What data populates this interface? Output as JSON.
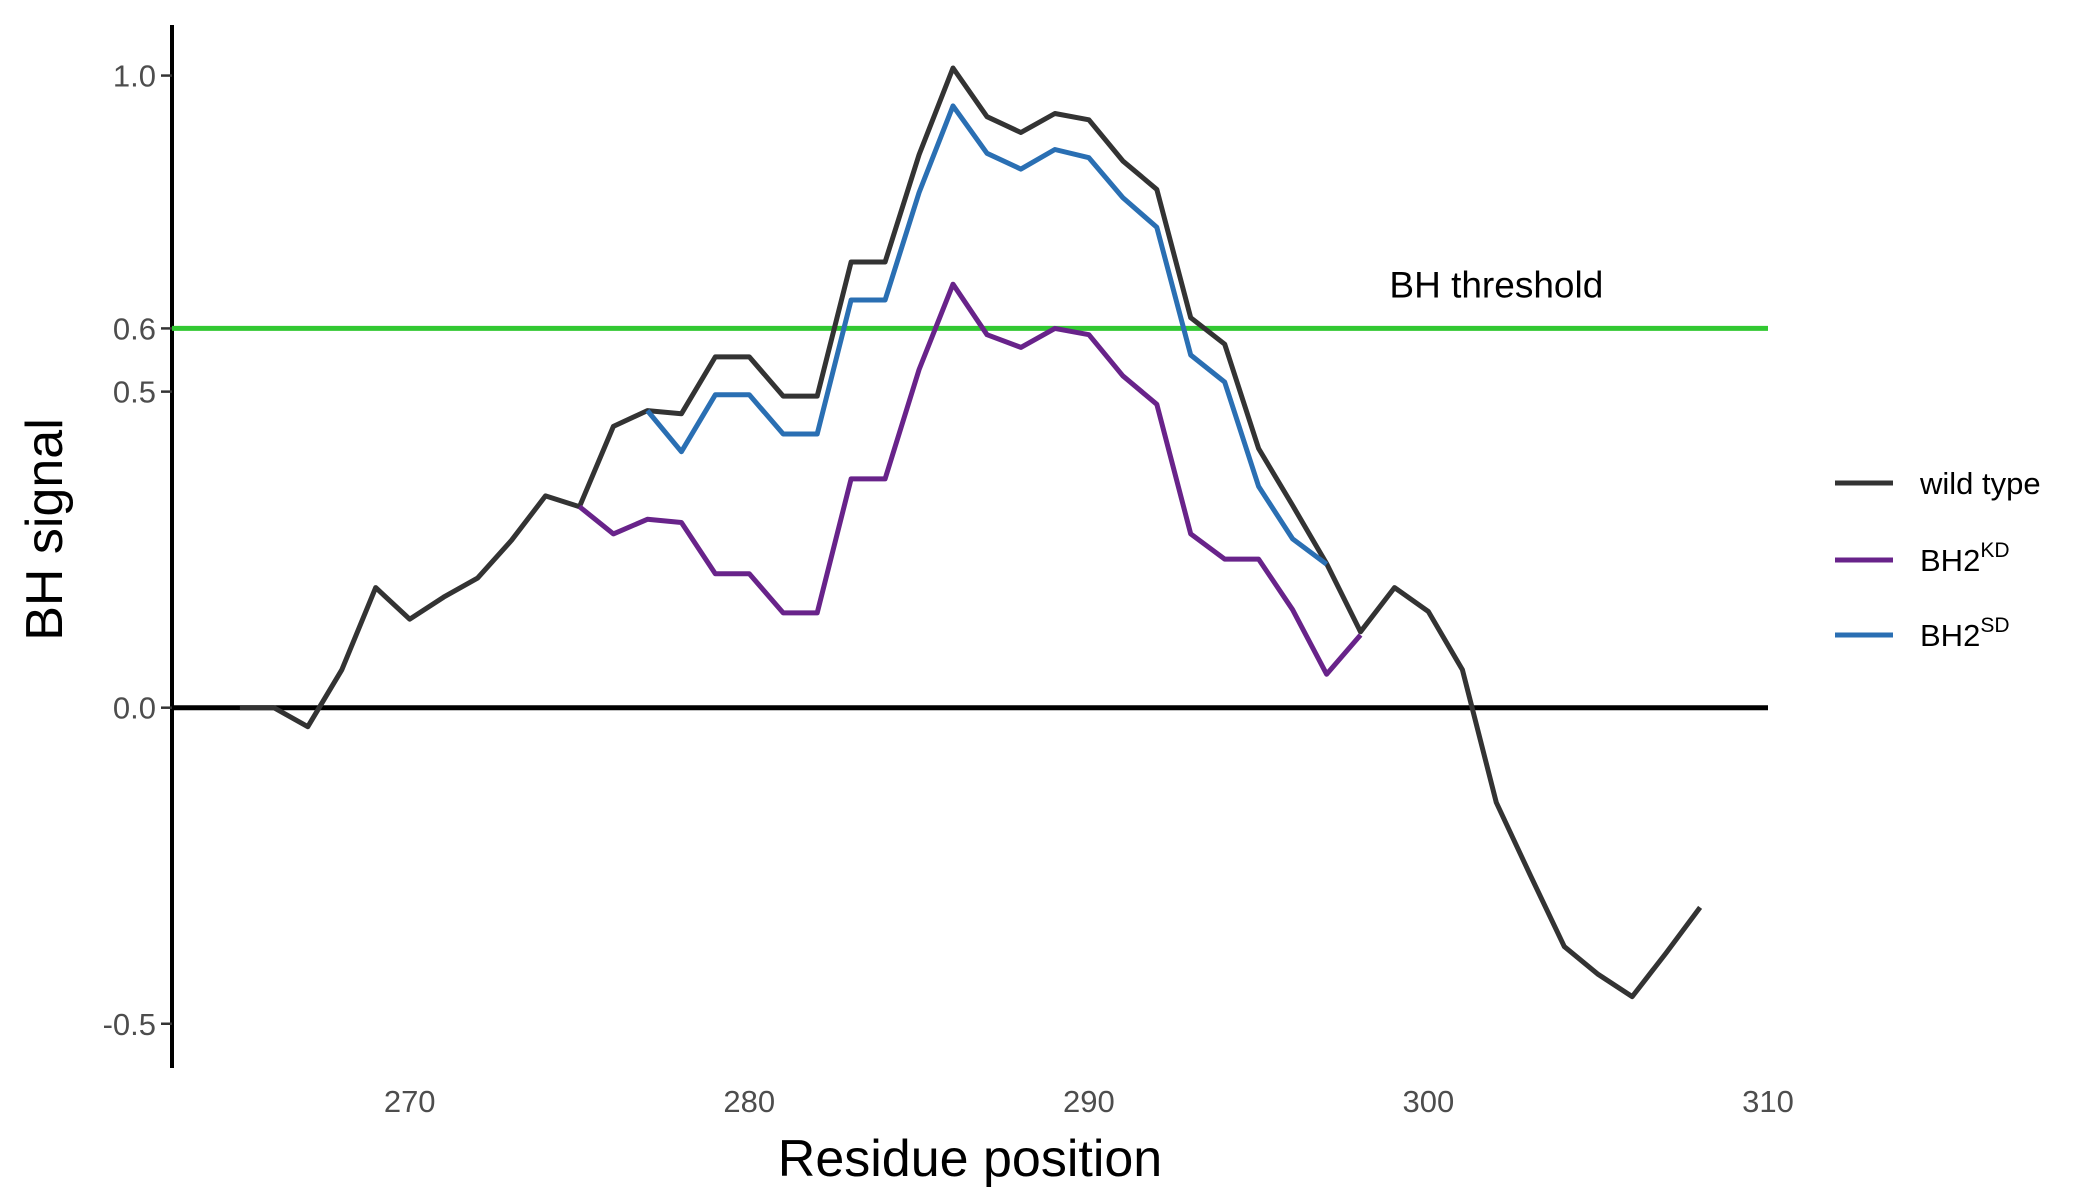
{
  "chart_data": {
    "type": "line",
    "xlabel": "Residue position",
    "ylabel": "BH signal",
    "xlim": [
      263,
      310
    ],
    "ylim": [
      -0.57,
      1.08
    ],
    "x_ticks": [
      270,
      280,
      290,
      300,
      310
    ],
    "x_tick_labels": [
      "270",
      "280",
      "290",
      "300",
      "310"
    ],
    "y_ticks": [
      -0.5,
      0.0,
      0.5,
      0.6,
      1.0
    ],
    "y_tick_labels": [
      "-0.5",
      "0.0",
      "0.5",
      "0.6",
      "1.0"
    ],
    "grid": false,
    "legend_position": "right",
    "zero_line": 0.0,
    "threshold": {
      "value": 0.6,
      "label": "BH threshold",
      "label_x": 302,
      "color": "#32c832"
    },
    "series": [
      {
        "name": "wild type",
        "label_main": "wild type",
        "label_sup": "",
        "color": "#333333",
        "x": [
          265,
          266,
          267,
          268,
          269,
          270,
          271,
          272,
          273,
          274,
          275,
          276,
          277,
          278,
          279,
          280,
          281,
          282,
          283,
          284,
          285,
          286,
          287,
          288,
          289,
          290,
          291,
          292,
          293,
          294,
          295,
          296,
          297,
          298,
          299,
          300,
          301,
          302,
          303,
          304,
          305,
          306,
          307,
          308
        ],
        "y": [
          0.0,
          0.0,
          -0.03,
          0.06,
          0.19,
          0.14,
          0.175,
          0.205,
          0.265,
          0.335,
          0.318,
          0.445,
          0.47,
          0.465,
          0.555,
          0.555,
          0.493,
          0.493,
          0.705,
          0.705,
          0.875,
          1.012,
          0.935,
          0.91,
          0.94,
          0.93,
          0.865,
          0.82,
          0.617,
          0.575,
          0.41,
          0.32,
          0.228,
          0.12,
          0.19,
          0.152,
          0.06,
          -0.15,
          -0.265,
          -0.378,
          -0.422,
          -0.457,
          -0.388,
          -0.316
        ]
      },
      {
        "name": "BH2KD",
        "label_main": "BH2",
        "label_sup": "KD",
        "color": "#68238a",
        "x": [
          275,
          276,
          277,
          278,
          279,
          280,
          281,
          282,
          283,
          284,
          285,
          286,
          287,
          288,
          289,
          290,
          291,
          292,
          293,
          294,
          295,
          296,
          297,
          298
        ],
        "y": [
          0.318,
          0.275,
          0.298,
          0.293,
          0.212,
          0.212,
          0.15,
          0.15,
          0.362,
          0.362,
          0.535,
          0.67,
          0.59,
          0.57,
          0.6,
          0.59,
          0.525,
          0.48,
          0.275,
          0.235,
          0.235,
          0.155,
          0.053,
          0.115
        ]
      },
      {
        "name": "BH2SD",
        "label_main": "BH2",
        "label_sup": "SD",
        "color": "#2a6fb3",
        "x": [
          277,
          278,
          279,
          280,
          281,
          282,
          283,
          284,
          285,
          286,
          287,
          288,
          289,
          290,
          291,
          292,
          293,
          294,
          295,
          296,
          297
        ],
        "y": [
          0.47,
          0.405,
          0.495,
          0.495,
          0.433,
          0.433,
          0.645,
          0.645,
          0.815,
          0.952,
          0.877,
          0.852,
          0.883,
          0.87,
          0.807,
          0.76,
          0.558,
          0.515,
          0.35,
          0.267,
          0.227
        ]
      }
    ]
  }
}
